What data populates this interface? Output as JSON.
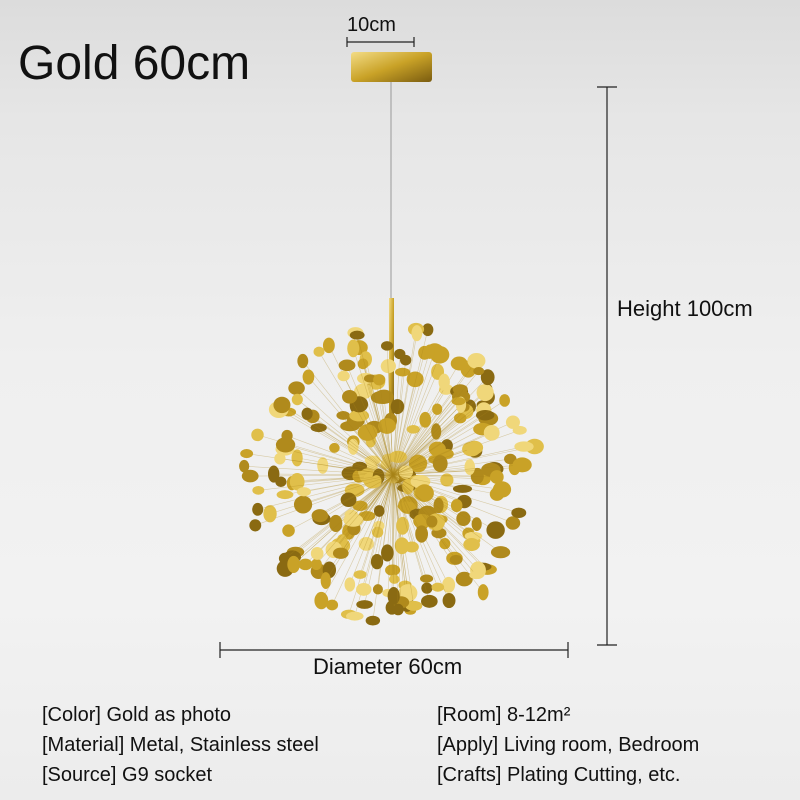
{
  "title": "Gold 60cm",
  "dimensions": {
    "canopy_width": "10cm",
    "height": "Height 100cm",
    "diameter": "Diameter 60cm"
  },
  "colors": {
    "gold": "#c9a227",
    "gold_light": "#f0d77a",
    "gold_dark": "#8a6a12"
  },
  "specs_left": [
    "[Color] Gold as photo",
    "[Material] Metal, Stainless steel",
    "[Source] G9 socket"
  ],
  "specs_right": [
    "[Room] 8-12m²",
    "[Apply] Living room, Bedroom",
    "[Crafts] Plating Cutting, etc."
  ]
}
